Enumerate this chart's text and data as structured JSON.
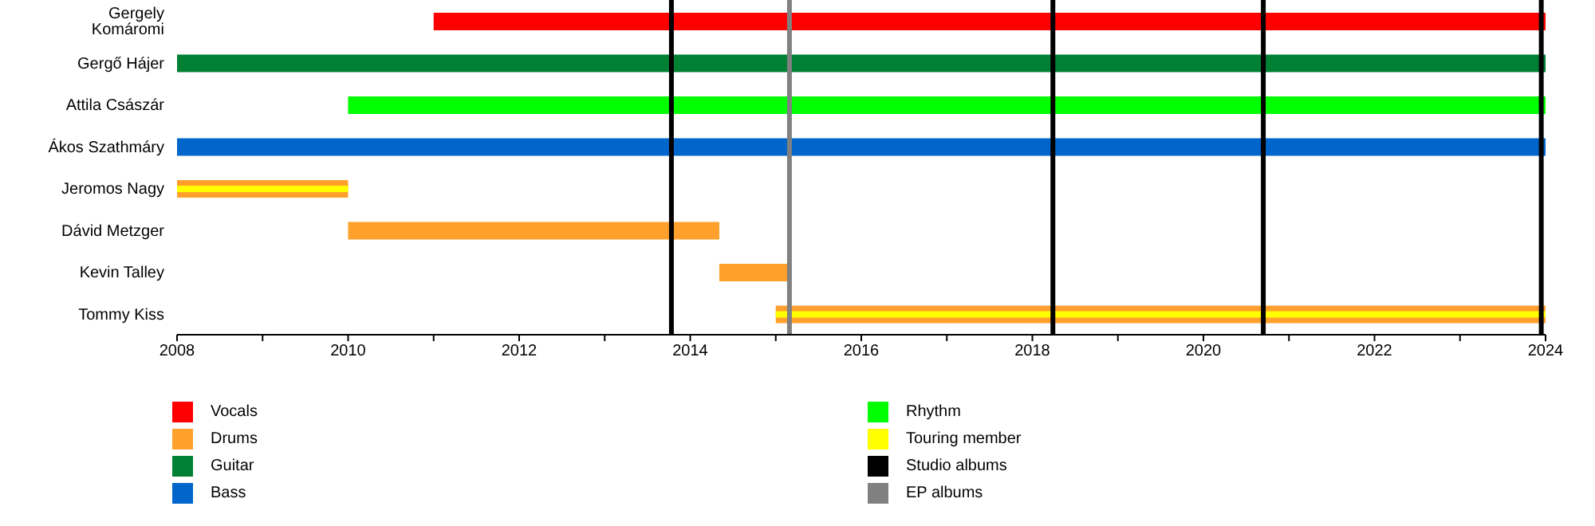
{
  "chart_data": {
    "type": "bar",
    "orientation": "horizontal",
    "categories": [
      "Gergely Komáromi",
      "Gergő Hájer",
      "Attila Császár",
      "Ákos Szathmáry",
      "Jeromos Nagy",
      "Dávid Metzger",
      "Kevin Talley",
      "Tommy Kiss"
    ],
    "series": [
      {
        "name": "Vocals",
        "color": "#ff0000",
        "base": [
          2011,
          null,
          null,
          null,
          null,
          null,
          null,
          null
        ],
        "values": [
          13,
          null,
          null,
          null,
          null,
          null,
          null,
          null
        ]
      },
      {
        "name": "Drums",
        "color": "#ffa02c",
        "base": [
          null,
          null,
          null,
          null,
          2008,
          2010,
          2014.34,
          2015
        ],
        "values": [
          null,
          null,
          null,
          null,
          2,
          4.34,
          0.82,
          9
        ]
      },
      {
        "name": "Guitar",
        "color": "#008033",
        "base": [
          null,
          2008,
          null,
          null,
          null,
          null,
          null,
          null
        ],
        "values": [
          null,
          16,
          null,
          null,
          null,
          null,
          null,
          null
        ]
      },
      {
        "name": "Bass",
        "color": "#0066cc",
        "base": [
          null,
          null,
          null,
          2008,
          null,
          null,
          null,
          null
        ],
        "values": [
          null,
          null,
          null,
          16,
          null,
          null,
          null,
          null
        ]
      },
      {
        "name": "Rhythm",
        "color": "#00ff00",
        "base": [
          null,
          null,
          2010,
          null,
          null,
          null,
          null,
          null
        ],
        "values": [
          null,
          null,
          14,
          null,
          null,
          null,
          null,
          null
        ]
      },
      {
        "name": "Touring member",
        "color": "#ffff00",
        "base": [
          null,
          null,
          null,
          null,
          2008,
          null,
          null,
          2015
        ],
        "values": [
          null,
          null,
          null,
          null,
          2,
          null,
          null,
          9
        ]
      }
    ],
    "ref_lines": [
      {
        "axis": "x",
        "value": 2013.78,
        "label": "Studio albums",
        "color": "#000000"
      },
      {
        "axis": "x",
        "value": 2015.16,
        "label": "EP albums",
        "color": "#808080"
      },
      {
        "axis": "x",
        "value": 2018.24,
        "color": "#000000"
      },
      {
        "axis": "x",
        "value": 2020.7,
        "color": "#000000"
      },
      {
        "axis": "x",
        "value": 2023.95,
        "color": "#000000"
      }
    ],
    "xlim": [
      2008,
      2024
    ],
    "xticks": [
      2008,
      {
        "value": 2009,
        "label": null
      },
      2010,
      {
        "value": 2011,
        "label": null
      },
      2012,
      {
        "value": 2013,
        "label": null
      },
      2014,
      {
        "value": 2015,
        "label": null
      },
      2016,
      {
        "value": 2017,
        "label": null
      },
      2018,
      {
        "value": 2019,
        "label": null
      },
      2020,
      {
        "value": 2021,
        "label": null
      },
      2022,
      {
        "value": 2023,
        "label": null
      },
      2024
    ],
    "legend": "bottom"
  }
}
